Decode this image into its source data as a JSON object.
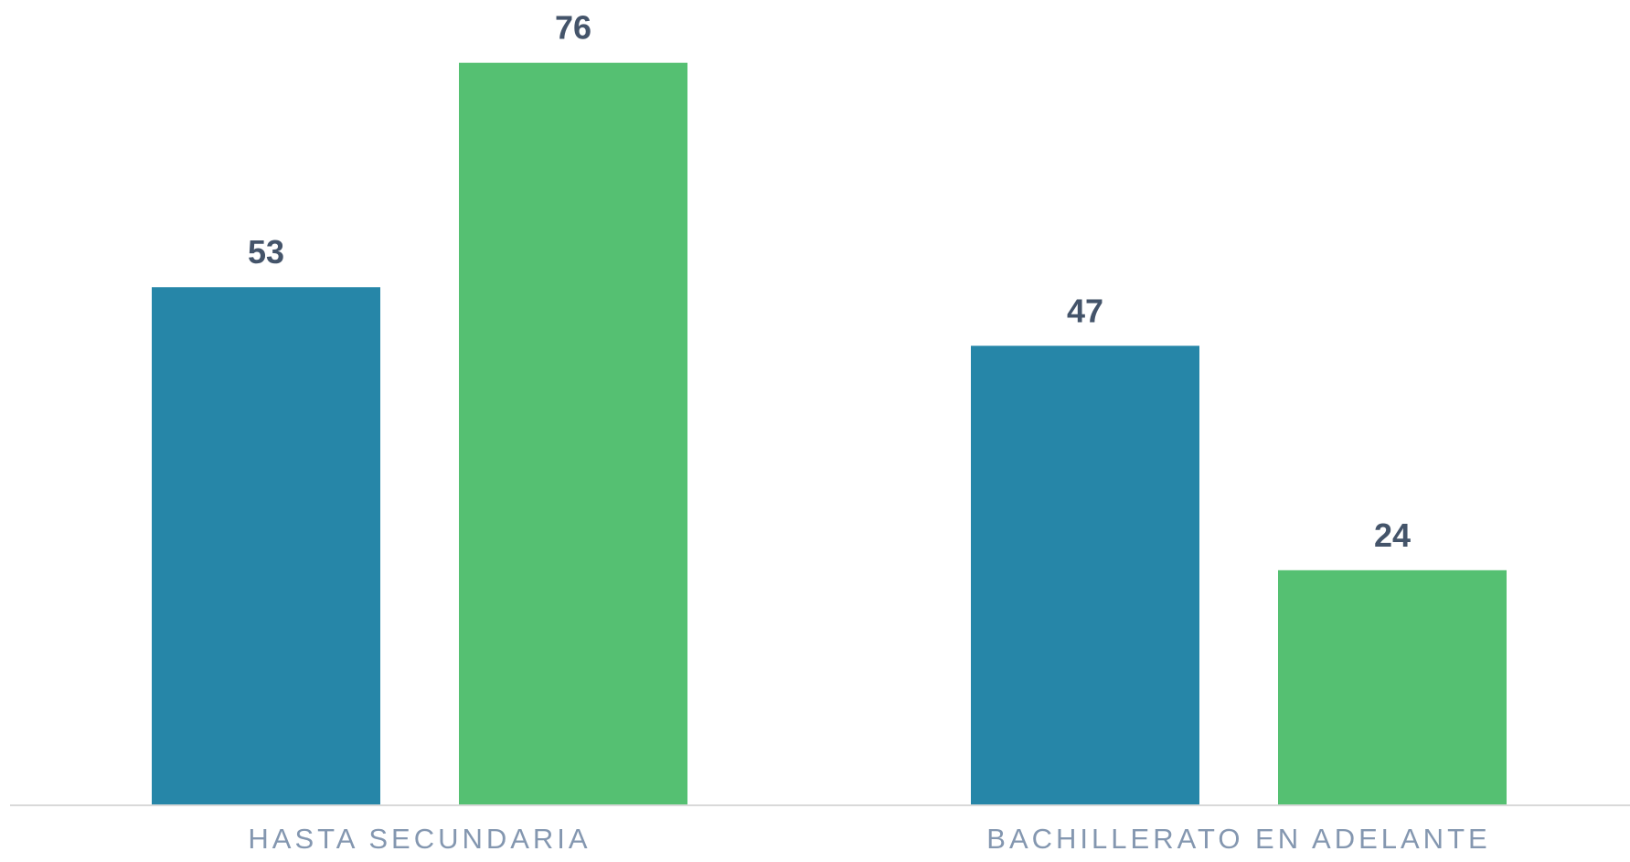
{
  "chart_data": {
    "type": "bar",
    "categories": [
      "HASTA SECUNDARIA",
      "BACHILLERATO EN ADELANTE"
    ],
    "series": [
      {
        "color": "#2686a8",
        "values": [
          53,
          47
        ]
      },
      {
        "color": "#55c072",
        "values": [
          76,
          24
        ]
      }
    ],
    "ylim": [
      0,
      80
    ]
  }
}
